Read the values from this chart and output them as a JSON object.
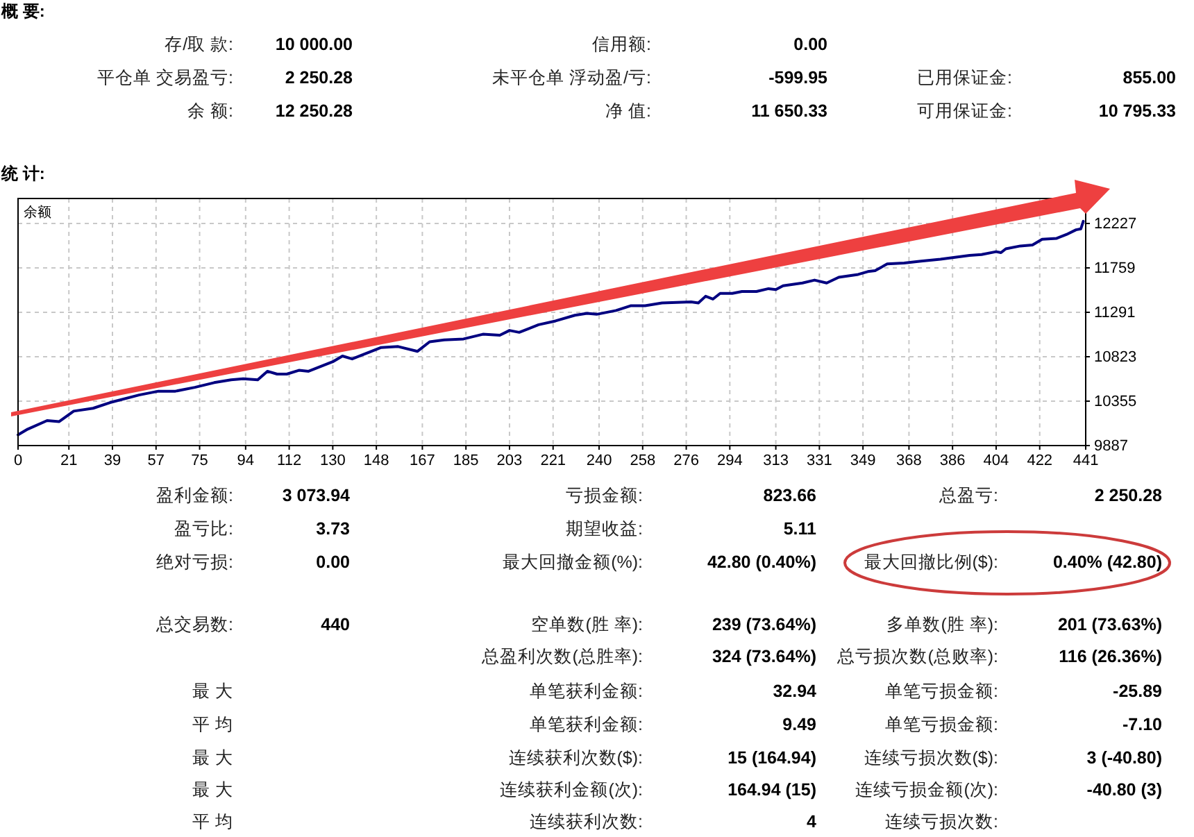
{
  "chart_data": [
    {
      "type": "other",
      "title": "概 要:",
      "annotations": [
        "存/取 款:",
        "10 000.00",
        "信用额:",
        "0.00",
        "平仓单 交易盈亏:",
        "2 250.28",
        "未平仓单 浮动盈/亏:",
        "-599.95",
        "已用保证金:",
        "855.00",
        "余 额:",
        "12 250.28",
        "净 值:",
        "11 650.33",
        "可用保证金:",
        "10 795.33"
      ]
    },
    {
      "type": "line",
      "title": "统 计:",
      "annotations": [
        "余额"
      ],
      "color": "#000080",
      "grid": true,
      "xlim": [
        0,
        441
      ],
      "ylim": [
        9887,
        12490
      ],
      "xticks": [
        0,
        21,
        39,
        57,
        75,
        94,
        112,
        130,
        148,
        167,
        185,
        203,
        221,
        240,
        258,
        276,
        294,
        313,
        331,
        349,
        368,
        386,
        404,
        422,
        441
      ],
      "yticks": [
        9887,
        10355,
        10823,
        11291,
        11759,
        12227
      ],
      "x": [
        0,
        4,
        12,
        17,
        23,
        31,
        38,
        50,
        58,
        65,
        73,
        81,
        88,
        93,
        99,
        103,
        107,
        111,
        116,
        120,
        126,
        130,
        134,
        138,
        142,
        150,
        157,
        165,
        170,
        176,
        184,
        192,
        199,
        203,
        207,
        215,
        222,
        230,
        235,
        239,
        247,
        253,
        259,
        266,
        278,
        281,
        284,
        287,
        290,
        295,
        299,
        305,
        310,
        313,
        316,
        324,
        329,
        334,
        339,
        347,
        351,
        354,
        359,
        366,
        373,
        381,
        387,
        393,
        398,
        404,
        406,
        408,
        414,
        419,
        423,
        429,
        433,
        437,
        439,
        440
      ],
      "values": [
        10000,
        10060,
        10150,
        10140,
        10250,
        10280,
        10340,
        10420,
        10460,
        10460,
        10500,
        10550,
        10580,
        10590,
        10580,
        10670,
        10640,
        10640,
        10680,
        10670,
        10730,
        10770,
        10830,
        10800,
        10840,
        10920,
        10930,
        10880,
        10980,
        11000,
        11010,
        11060,
        11050,
        11100,
        11080,
        11160,
        11200,
        11260,
        11280,
        11270,
        11310,
        11360,
        11360,
        11390,
        11400,
        11390,
        11460,
        11430,
        11490,
        11490,
        11510,
        11510,
        11540,
        11530,
        11570,
        11600,
        11630,
        11600,
        11660,
        11690,
        11720,
        11730,
        11800,
        11810,
        11830,
        11850,
        11870,
        11890,
        11900,
        11930,
        11920,
        11960,
        11990,
        12000,
        12060,
        12070,
        12110,
        12160,
        12170,
        12250
      ]
    },
    {
      "type": "other",
      "annotations": [
        "盈利金额:",
        "3 073.94",
        "亏损金额:",
        "823.66",
        "总盈亏:",
        "2 250.28",
        "盈亏比:",
        "3.73",
        "期望收益:",
        "5.11",
        "绝对亏损:",
        "0.00",
        "最大回撤金额(%):",
        "42.80 (0.40%)",
        "最大回撤比例($):",
        "0.40% (42.80)",
        "总交易数:",
        "440",
        "空单数(胜 率):",
        "239 (73.64%)",
        "多单数(胜 率):",
        "201 (73.63%)",
        "总盈利次数(总胜率):",
        "324 (73.64%)",
        "总亏损次数(总败率):",
        "116 (26.36%)",
        "最 大",
        "单笔获利金额:",
        "32.94",
        "单笔亏损金额:",
        "-25.89",
        "平 均",
        "单笔获利金额:",
        "9.49",
        "单笔亏损金额:",
        "-7.10",
        "最 大",
        "连续获利次数($):",
        "15 (164.94)",
        "连续亏损次数($):",
        "3 (-40.80)",
        "最 大",
        "连续获利金额(次):",
        "164.94 (15)",
        "连续亏损金额(次):",
        "-40.80 (3)",
        "平 均",
        "连续获利次数:",
        "4",
        "连续亏损次数:"
      ]
    }
  ]
}
